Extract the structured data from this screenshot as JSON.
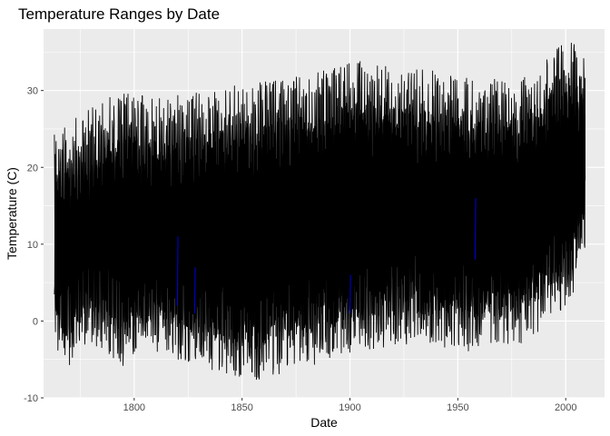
{
  "chart_data": {
    "type": "line",
    "title": "Temperature Ranges by Date",
    "xlabel": "Date",
    "ylabel": "Temperature (C)",
    "xlim": [
      1758,
      2018
    ],
    "ylim": [
      -10,
      38
    ],
    "x_ticks": [
      1800,
      1850,
      1900,
      1950,
      2000
    ],
    "x_tick_labels": [
      "1800",
      "1850",
      "1900",
      "1950",
      "2000"
    ],
    "y_ticks": [
      -10,
      0,
      10,
      20,
      30
    ],
    "y_tick_labels": [
      "-10",
      "0",
      "10",
      "20",
      "30"
    ],
    "x_range": [
      1763,
      2009
    ],
    "grid": true,
    "background": "ggplot-grey",
    "colors": {
      "panel_bg": "#ebebeb",
      "grid": "#ffffff",
      "line": "#000000",
      "accent_line": "#0000ff"
    },
    "series": [
      {
        "style": "range-segments",
        "description_values": {
          "typical_summer_max": [
            22,
            32
          ],
          "typical_winter_min": [
            -6,
            5
          ]
        },
        "samples": [
          {
            "x": 1763,
            "low": -2,
            "high": 27
          },
          {
            "x": 1766,
            "low": -7,
            "high": 25
          },
          {
            "x": 1780,
            "low": -3,
            "high": 28
          },
          {
            "x": 1795,
            "low": -6,
            "high": 30
          },
          {
            "x": 1810,
            "low": -4,
            "high": 29
          },
          {
            "x": 1830,
            "low": -6,
            "high": 30
          },
          {
            "x": 1855,
            "low": -8,
            "high": 31
          },
          {
            "x": 1880,
            "low": -6,
            "high": 32
          },
          {
            "x": 1905,
            "low": -4,
            "high": 34
          },
          {
            "x": 1930,
            "low": -3,
            "high": 33
          },
          {
            "x": 1955,
            "low": -4,
            "high": 32
          },
          {
            "x": 1980,
            "low": -3,
            "high": 32
          },
          {
            "x": 2003,
            "low": 2,
            "high": 37
          },
          {
            "x": 2009,
            "low": 8,
            "high": 34
          }
        ]
      }
    ]
  }
}
